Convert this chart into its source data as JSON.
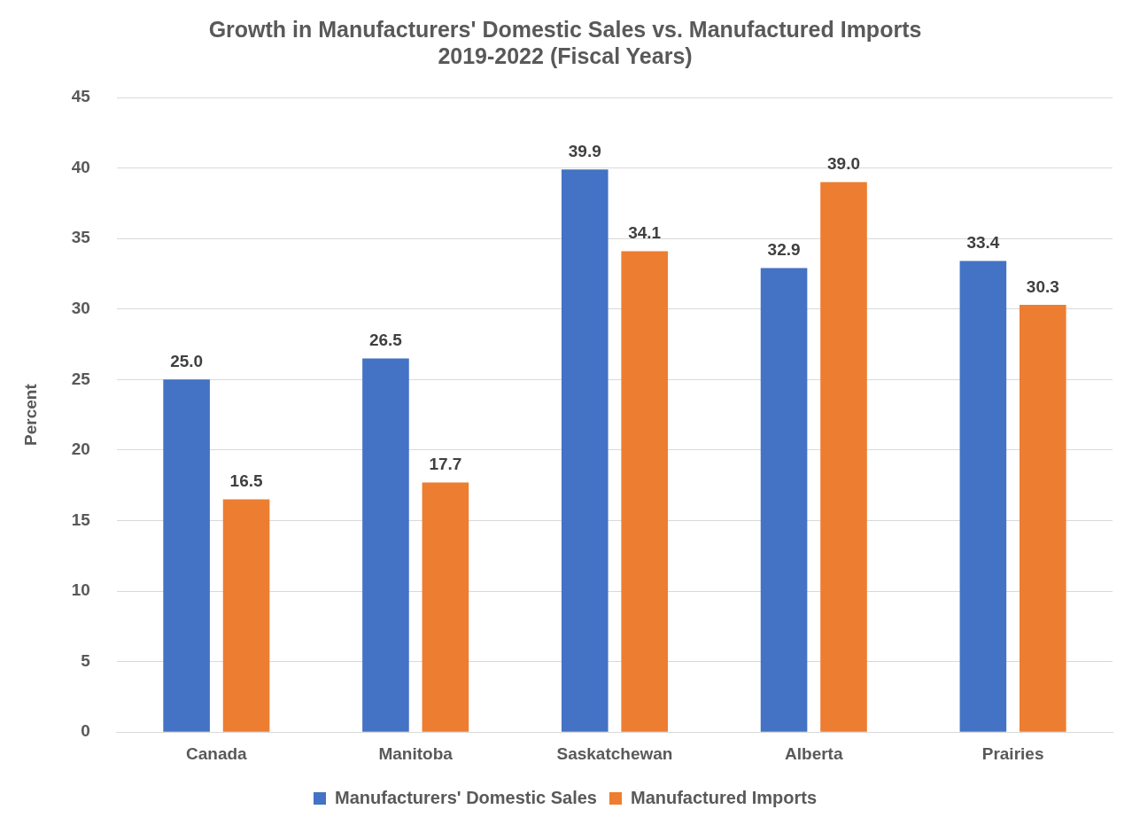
{
  "chart_data": {
    "type": "bar",
    "title": "Growth in Manufacturers' Domestic Sales vs. Manufactured Imports\n2019-2022 (Fiscal Years)",
    "ylabel": "Percent",
    "categories": [
      "Canada",
      "Manitoba",
      "Saskatchewan",
      "Alberta",
      "Prairies"
    ],
    "series": [
      {
        "name": "Manufacturers' Domestic Sales",
        "color": "#4472c4",
        "values": [
          25.0,
          26.5,
          39.9,
          32.9,
          33.4
        ],
        "value_labels": [
          "25.0",
          "26.5",
          "39.9",
          "32.9",
          "33.4"
        ]
      },
      {
        "name": "Manufactured Imports",
        "color": "#ed7d31",
        "values": [
          16.5,
          17.7,
          34.1,
          39.0,
          30.3
        ],
        "value_labels": [
          "16.5",
          "17.7",
          "34.1",
          "39.0",
          "30.3"
        ]
      }
    ],
    "ylim": [
      0,
      45
    ],
    "yticks": [
      0,
      5,
      10,
      15,
      20,
      25,
      30,
      35,
      40,
      45
    ],
    "grid": "y",
    "legend": "bottom"
  }
}
